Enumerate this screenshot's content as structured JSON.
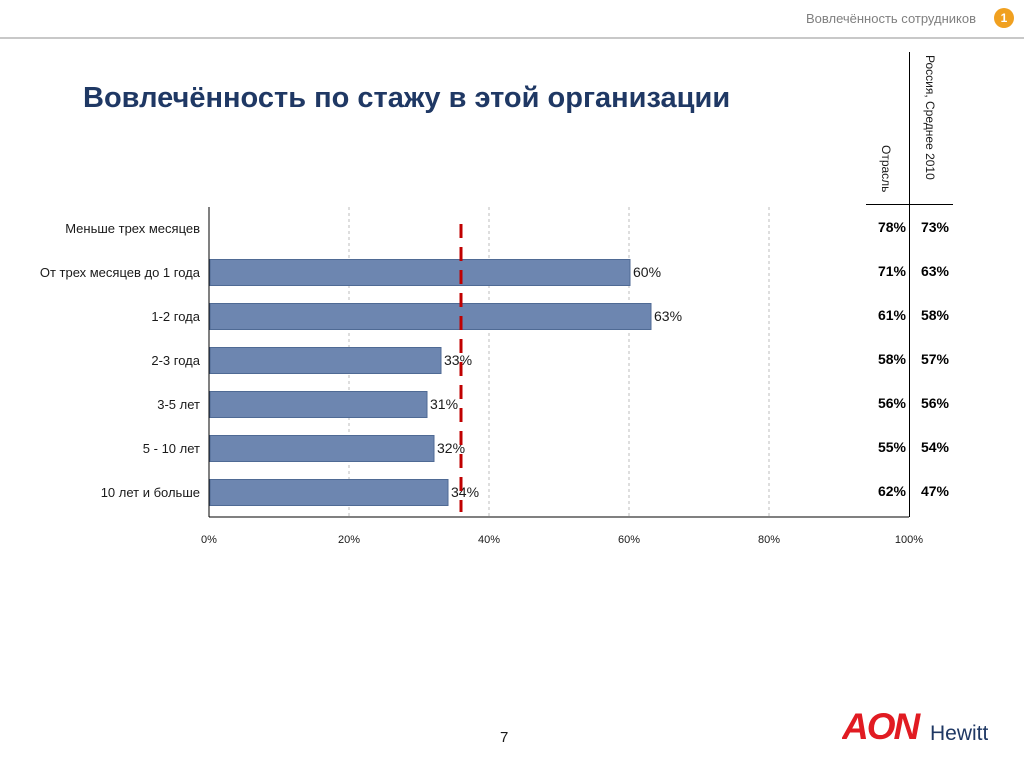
{
  "header": {
    "text": "Вовлечённость сотрудников",
    "badge": "1"
  },
  "title": "Вовлечённость по стажу в этой организации",
  "columns": {
    "col1": "Отрасль",
    "col2": "Россия, Среднее 2010"
  },
  "table": [
    {
      "col1": "78%",
      "col2": "73%"
    },
    {
      "col1": "71%",
      "col2": "63%"
    },
    {
      "col1": "61%",
      "col2": "58%"
    },
    {
      "col1": "58%",
      "col2": "57%"
    },
    {
      "col1": "56%",
      "col2": "56%"
    },
    {
      "col1": "55%",
      "col2": "54%"
    },
    {
      "col1": "62%",
      "col2": "47%"
    }
  ],
  "page_number": "7",
  "logo": {
    "text_main": "AON",
    "text_sub": "Hewitt"
  },
  "colors": {
    "bar": "#6d86b0",
    "reference_line": "#c00000",
    "title": "#1f3864",
    "logo": "#e11b22"
  },
  "chart_data": {
    "type": "bar",
    "orientation": "horizontal",
    "categories": [
      "Меньше трех месяцев",
      "От трех месяцев до 1 года",
      "1-2 года",
      "2-3 года",
      "3-5 лет",
      "5 - 10 лет",
      "10 лет и больше"
    ],
    "values": [
      null,
      60,
      63,
      33,
      31,
      32,
      34
    ],
    "value_labels": [
      "",
      "60%",
      "63%",
      "33%",
      "31%",
      "32%",
      "34%"
    ],
    "xlim": [
      0,
      100
    ],
    "x_ticks": [
      0,
      20,
      40,
      60,
      80,
      100
    ],
    "x_tick_labels": [
      "0%",
      "20%",
      "40%",
      "60%",
      "80%",
      "100%"
    ],
    "reference_line": 36,
    "grid": "vertical dashed"
  }
}
